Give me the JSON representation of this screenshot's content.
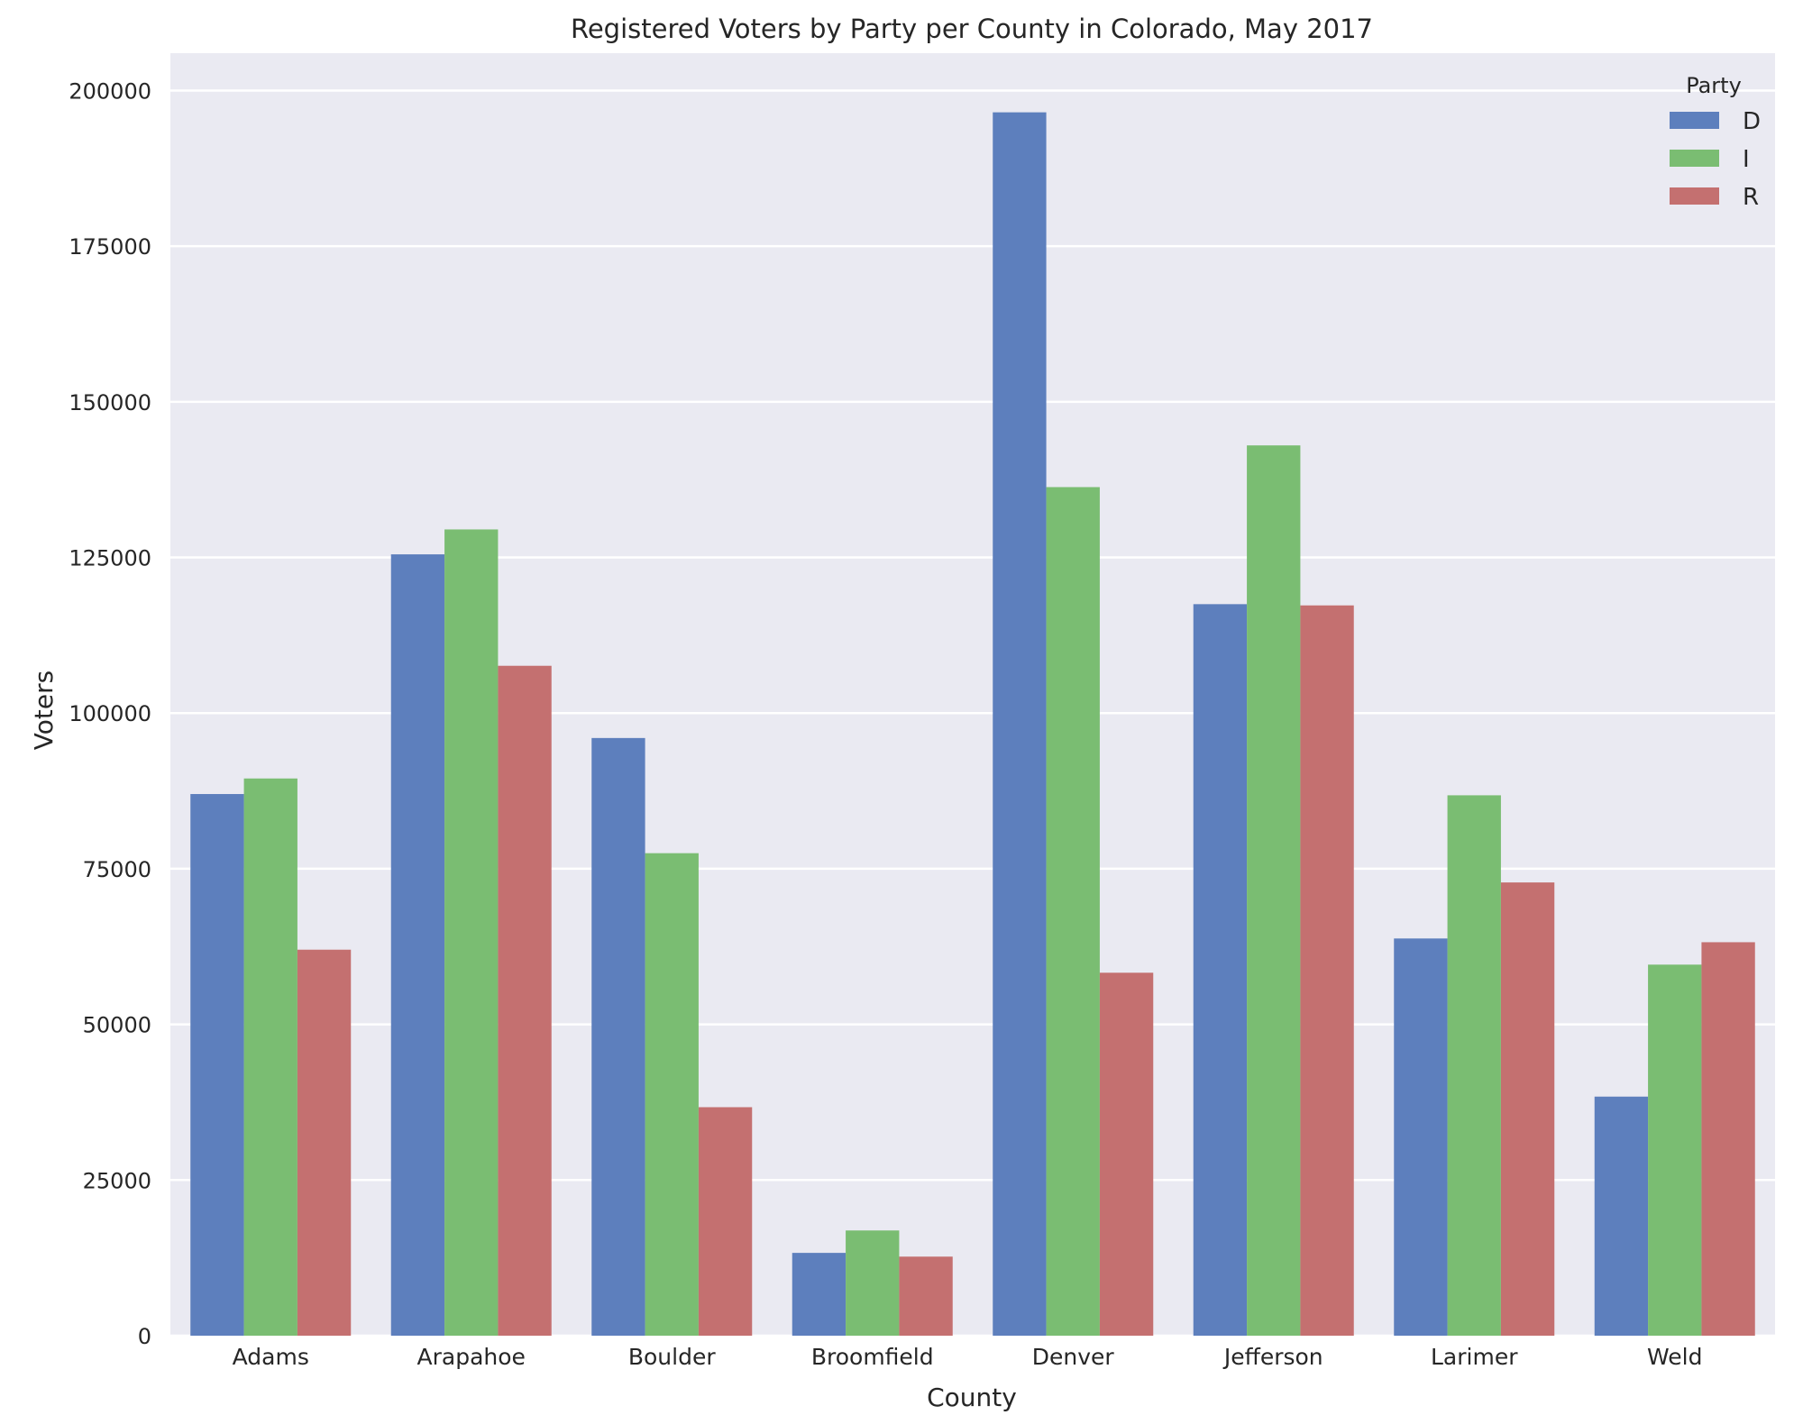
{
  "chart_data": {
    "type": "bar",
    "title": "Registered Voters by Party per County in Colorado, May 2017",
    "xlabel": "County",
    "ylabel": "Voters",
    "categories": [
      "Adams",
      "Arapahoe",
      "Boulder",
      "Broomfield",
      "Denver",
      "Jefferson",
      "Larimer",
      "Weld"
    ],
    "series": [
      {
        "name": "D",
        "color": "#5d7fbd",
        "values": [
          87000,
          125500,
          96000,
          13300,
          196500,
          117500,
          63800,
          38400
        ]
      },
      {
        "name": "I",
        "color": "#7abd72",
        "values": [
          89500,
          129500,
          77500,
          16900,
          136300,
          143000,
          86800,
          59600
        ]
      },
      {
        "name": "R",
        "color": "#c47070",
        "values": [
          62000,
          107600,
          36700,
          12700,
          58300,
          117300,
          72800,
          63200
        ]
      }
    ],
    "ylim": [
      0,
      206000
    ],
    "yticks": [
      0,
      25000,
      50000,
      75000,
      100000,
      125000,
      150000,
      175000,
      200000
    ],
    "legend": {
      "title": "Party",
      "placement": "top-right"
    },
    "grid": true,
    "style": {
      "background": "#eaeaf2",
      "gridline": "#ffffff"
    }
  }
}
